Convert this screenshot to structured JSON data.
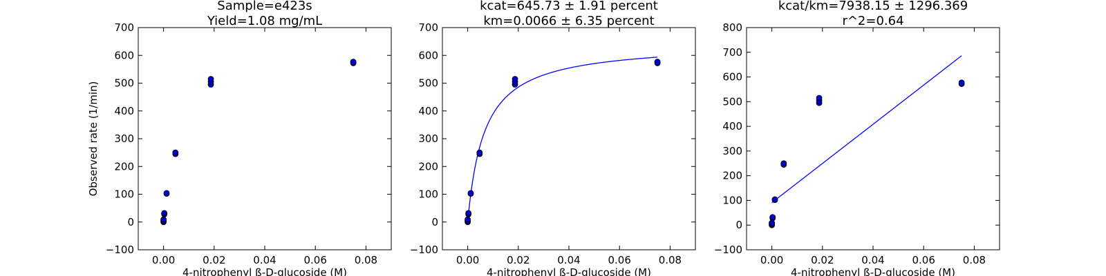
{
  "colors": {
    "marker_fill": "#0000cc",
    "marker_edge": "#000000",
    "fit_line": "#0000ff",
    "axes": "#000000",
    "background": "#ffffff"
  },
  "chart_data": [
    {
      "type": "scatter",
      "title_lines": [
        "Sample=e423s",
        "Yield=1.08 mg/mL"
      ],
      "xlabel": "4-nitrophenyl ß-D-glucoside (M)",
      "ylabel": "Observed rate (1/min)",
      "xlim": [
        -0.01,
        0.09
      ],
      "ylim": [
        -100,
        700
      ],
      "xticks": [
        0.0,
        0.02,
        0.04,
        0.06,
        0.08
      ],
      "xtick_labels": [
        "0.00",
        "0.02",
        "0.04",
        "0.06",
        "0.08"
      ],
      "yticks": [
        -100,
        0,
        100,
        200,
        300,
        400,
        500,
        600,
        700
      ],
      "ytick_labels": [
        "−100",
        "0",
        "100",
        "200",
        "300",
        "400",
        "500",
        "600",
        "700"
      ],
      "grid": false,
      "points": {
        "x": [
          0.0,
          0.0,
          0.0,
          0.0,
          0.0003,
          0.0003,
          0.0003,
          0.0012,
          0.0012,
          0.0047,
          0.0047,
          0.0187,
          0.0187,
          0.0187,
          0.075,
          0.075
        ],
        "y": [
          0,
          3,
          6,
          9,
          28,
          30,
          32,
          102,
          104,
          245,
          250,
          495,
          505,
          515,
          572,
          577
        ]
      }
    },
    {
      "type": "scatter",
      "title_lines": [
        "kcat=645.73 ± 1.91 percent",
        "km=0.0066 ± 6.35 percent"
      ],
      "xlabel": "4-nitrophenyl ß-D-glucoside (M)",
      "ylabel": "",
      "xlim": [
        -0.01,
        0.09
      ],
      "ylim": [
        -100,
        700
      ],
      "xticks": [
        0.0,
        0.02,
        0.04,
        0.06,
        0.08
      ],
      "xtick_labels": [
        "0.00",
        "0.02",
        "0.04",
        "0.06",
        "0.08"
      ],
      "yticks": [
        -100,
        0,
        100,
        200,
        300,
        400,
        500,
        600,
        700
      ],
      "ytick_labels": [
        "−100",
        "0",
        "100",
        "200",
        "300",
        "400",
        "500",
        "600",
        "700"
      ],
      "grid": false,
      "points": {
        "x": [
          0.0,
          0.0,
          0.0,
          0.0,
          0.0003,
          0.0003,
          0.0003,
          0.0012,
          0.0012,
          0.0047,
          0.0047,
          0.0187,
          0.0187,
          0.0187,
          0.075,
          0.075
        ],
        "y": [
          0,
          3,
          6,
          9,
          28,
          30,
          32,
          102,
          104,
          245,
          250,
          495,
          505,
          515,
          572,
          577
        ]
      },
      "fit": {
        "model": "michaelis-menten",
        "kcat": 645.73,
        "km": 0.0066,
        "x_range": [
          0.0,
          0.075
        ]
      }
    },
    {
      "type": "scatter",
      "title_lines": [
        "kcat/km=7938.15 ± 1296.369",
        "r^2=0.64"
      ],
      "xlabel": "4-nitrophenyl ß-D-glucoside (M)",
      "ylabel": "",
      "xlim": [
        -0.01,
        0.09
      ],
      "ylim": [
        -100,
        800
      ],
      "xticks": [
        0.0,
        0.02,
        0.04,
        0.06,
        0.08
      ],
      "xtick_labels": [
        "0.00",
        "0.02",
        "0.04",
        "0.06",
        "0.08"
      ],
      "yticks": [
        -100,
        0,
        100,
        200,
        300,
        400,
        500,
        600,
        700,
        800
      ],
      "ytick_labels": [
        "−100",
        "0",
        "100",
        "200",
        "300",
        "400",
        "500",
        "600",
        "700",
        "800"
      ],
      "grid": false,
      "points": {
        "x": [
          0.0,
          0.0,
          0.0,
          0.0,
          0.0003,
          0.0003,
          0.0003,
          0.0012,
          0.0012,
          0.0047,
          0.0047,
          0.0187,
          0.0187,
          0.0187,
          0.075,
          0.075
        ],
        "y": [
          0,
          3,
          6,
          9,
          28,
          30,
          32,
          102,
          104,
          245,
          250,
          495,
          505,
          515,
          572,
          577
        ]
      },
      "fit": {
        "model": "linear",
        "x_start": 0.0,
        "y_start": 91,
        "x_end": 0.075,
        "y_end": 686
      }
    }
  ]
}
